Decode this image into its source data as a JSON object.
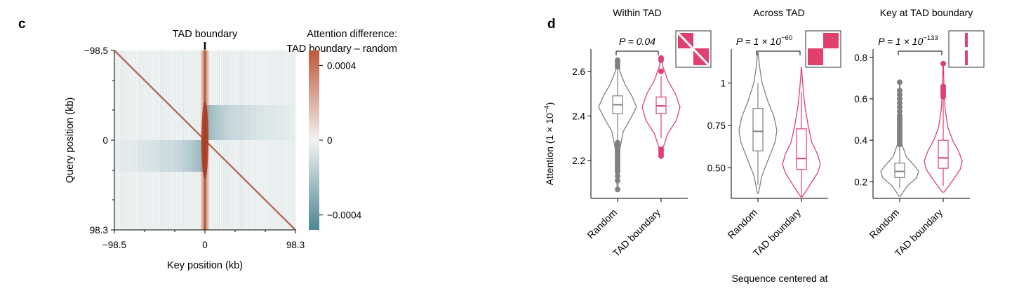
{
  "panel_c": {
    "label": "c",
    "title": "TAD boundary",
    "xlabel": "Key position (kb)",
    "ylabel": "Query position (kb)",
    "xticks": [
      "−98.5",
      "0",
      "98.3"
    ],
    "yticks": [
      "−98.5",
      "0",
      "98.3"
    ],
    "colorbar": {
      "title_lines": [
        "Attention difference:",
        "TAD boundary – random"
      ],
      "ticks": [
        "0.0004",
        "0",
        "−0.0004"
      ],
      "tick_values": [
        0.0004,
        0,
        -0.0004
      ],
      "range": [
        -0.00048,
        0.00048
      ],
      "colors": {
        "high": "#c0583a",
        "mid": "#f2f2f2",
        "low": "#4e8794"
      }
    }
  },
  "panel_d": {
    "label": "d",
    "ylabel_main": "Attention (1 × 10",
    "ylabel_sup": "−4",
    "ylabel_close": ")",
    "xlabel": "Sequence centered at",
    "colors": {
      "Random": "#808080",
      "TAD boundary": "#e04070"
    }
  },
  "chart_data": [
    {
      "type": "heatmap",
      "title": "TAD boundary",
      "xlabel": "Key position (kb)",
      "ylabel": "Query position (kb)",
      "x_range": [
        -98.5,
        98.3
      ],
      "y_range": [
        -98.5,
        98.3
      ],
      "value_range": [
        -0.00048,
        0.00048
      ],
      "pattern": "positive diagonal band and strong positive column at key position 0; weak negative values to the right above 0 and to the left below 0"
    },
    {
      "type": "violin",
      "title": "Within TAD",
      "pvalue": {
        "text": "P = 0.04"
      },
      "categories": [
        "Random",
        "TAD boundary"
      ],
      "ylim": [
        2.03,
        2.7
      ],
      "yticks": [
        2.2,
        2.4,
        2.6
      ],
      "ytick_labels": [
        "2.2",
        "2.4",
        "2.6"
      ],
      "series": [
        {
          "name": "Random",
          "q1": 2.41,
          "median": 2.45,
          "q3": 2.49,
          "whisker_low": 2.29,
          "whisker_high": 2.61,
          "outliers_low": [
            2.28,
            2.27,
            2.26,
            2.25,
            2.24,
            2.23,
            2.22,
            2.21,
            2.2,
            2.19,
            2.18,
            2.17,
            2.16,
            2.15,
            2.13,
            2.11,
            2.07
          ],
          "outliers_high": [
            2.62,
            2.63,
            2.64,
            2.65
          ],
          "violin_min": 2.06,
          "violin_max": 2.66,
          "density": [
            [
              2.06,
              0.02
            ],
            [
              2.15,
              0.05
            ],
            [
              2.25,
              0.12
            ],
            [
              2.33,
              0.3
            ],
            [
              2.39,
              0.7
            ],
            [
              2.44,
              1.0
            ],
            [
              2.49,
              0.75
            ],
            [
              2.54,
              0.4
            ],
            [
              2.6,
              0.12
            ],
            [
              2.66,
              0.02
            ]
          ]
        },
        {
          "name": "TAD boundary",
          "q1": 2.41,
          "median": 2.445,
          "q3": 2.485,
          "whisker_low": 2.3,
          "whisker_high": 2.58,
          "outliers_low": [
            2.25,
            2.24,
            2.23,
            2.22
          ],
          "outliers_high": [
            2.6,
            2.65,
            2.66
          ],
          "violin_min": 2.21,
          "violin_max": 2.66,
          "density": [
            [
              2.21,
              0.02
            ],
            [
              2.26,
              0.12
            ],
            [
              2.32,
              0.35
            ],
            [
              2.38,
              0.8
            ],
            [
              2.44,
              1.0
            ],
            [
              2.5,
              0.75
            ],
            [
              2.56,
              0.35
            ],
            [
              2.62,
              0.1
            ],
            [
              2.66,
              0.02
            ]
          ]
        }
      ]
    },
    {
      "type": "violin",
      "title": "Across TAD",
      "pvalue": {
        "text": "P = 1 × 10",
        "exp": "−60"
      },
      "categories": [
        "Random",
        "TAD boundary"
      ],
      "ylim": [
        0.32,
        1.2
      ],
      "yticks": [
        0.5,
        0.75,
        1.0
      ],
      "ytick_labels": [
        "0.50",
        "0.75",
        "1"
      ],
      "series": [
        {
          "name": "Random",
          "q1": 0.6,
          "median": 0.715,
          "q3": 0.85,
          "whisker_low": 0.4,
          "whisker_high": 1.0,
          "violin_min": 0.35,
          "violin_max": 1.18,
          "density": [
            [
              0.35,
              0.03
            ],
            [
              0.45,
              0.2
            ],
            [
              0.55,
              0.55
            ],
            [
              0.65,
              0.9
            ],
            [
              0.72,
              1.0
            ],
            [
              0.8,
              0.85
            ],
            [
              0.9,
              0.5
            ],
            [
              1.0,
              0.22
            ],
            [
              1.1,
              0.08
            ],
            [
              1.18,
              0.01
            ]
          ]
        },
        {
          "name": "TAD boundary",
          "q1": 0.49,
          "median": 0.555,
          "q3": 0.73,
          "whisker_low": 0.33,
          "whisker_high": 0.95,
          "violin_min": 0.33,
          "violin_max": 1.09,
          "density": [
            [
              0.33,
              0.05
            ],
            [
              0.4,
              0.45
            ],
            [
              0.47,
              0.85
            ],
            [
              0.52,
              1.0
            ],
            [
              0.58,
              0.85
            ],
            [
              0.65,
              0.55
            ],
            [
              0.75,
              0.35
            ],
            [
              0.85,
              0.2
            ],
            [
              0.95,
              0.1
            ],
            [
              1.05,
              0.03
            ],
            [
              1.09,
              0.01
            ]
          ]
        }
      ]
    },
    {
      "type": "violin",
      "title": "Key at TAD boundary",
      "pvalue": {
        "text": "P = 1 × 10",
        "exp": "−133"
      },
      "categories": [
        "Random",
        "TAD boundary"
      ],
      "ylim": [
        0.12,
        0.84
      ],
      "yticks": [
        0.2,
        0.4,
        0.6,
        0.8
      ],
      "ytick_labels": [
        "0.2",
        "0.4",
        "0.6",
        "0.8"
      ],
      "series": [
        {
          "name": "Random",
          "q1": 0.22,
          "median": 0.25,
          "q3": 0.29,
          "whisker_low": 0.17,
          "whisker_high": 0.37,
          "outliers_low": [],
          "outliers_high": [
            0.38,
            0.39,
            0.4,
            0.41,
            0.42,
            0.43,
            0.44,
            0.45,
            0.46,
            0.47,
            0.48,
            0.49,
            0.5,
            0.51,
            0.52,
            0.54,
            0.56,
            0.58,
            0.6,
            0.62,
            0.64,
            0.68
          ],
          "violin_min": 0.13,
          "violin_max": 0.68,
          "density": [
            [
              0.13,
              0.03
            ],
            [
              0.18,
              0.4
            ],
            [
              0.22,
              0.9
            ],
            [
              0.25,
              1.0
            ],
            [
              0.28,
              0.75
            ],
            [
              0.32,
              0.35
            ],
            [
              0.38,
              0.12
            ],
            [
              0.45,
              0.05
            ],
            [
              0.55,
              0.02
            ],
            [
              0.68,
              0.01
            ]
          ]
        },
        {
          "name": "TAD boundary",
          "q1": 0.265,
          "median": 0.315,
          "q3": 0.4,
          "whisker_low": 0.18,
          "whisker_high": 0.6,
          "outliers_low": [],
          "outliers_high": [
            0.61,
            0.62,
            0.63,
            0.64,
            0.65,
            0.66,
            0.77
          ],
          "violin_min": 0.15,
          "violin_max": 0.77,
          "density": [
            [
              0.15,
              0.05
            ],
            [
              0.2,
              0.45
            ],
            [
              0.26,
              0.9
            ],
            [
              0.3,
              1.0
            ],
            [
              0.35,
              0.8
            ],
            [
              0.4,
              0.5
            ],
            [
              0.46,
              0.25
            ],
            [
              0.55,
              0.1
            ],
            [
              0.65,
              0.04
            ],
            [
              0.77,
              0.01
            ]
          ]
        }
      ]
    }
  ]
}
